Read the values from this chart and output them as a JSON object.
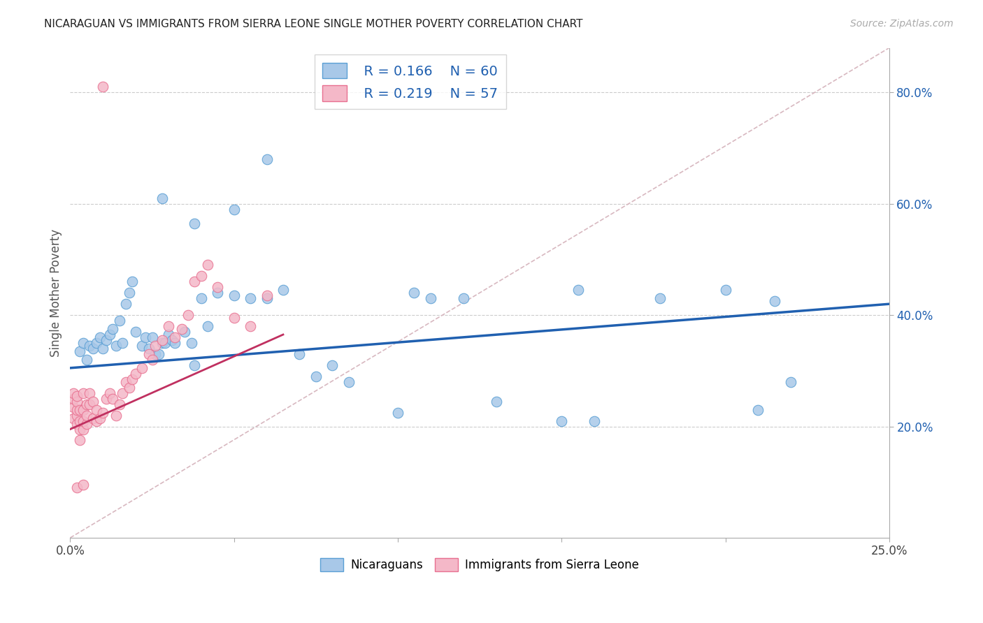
{
  "title": "NICARAGUAN VS IMMIGRANTS FROM SIERRA LEONE SINGLE MOTHER POVERTY CORRELATION CHART",
  "source": "Source: ZipAtlas.com",
  "ylabel": "Single Mother Poverty",
  "ytick_labels": [
    "20.0%",
    "40.0%",
    "60.0%",
    "80.0%"
  ],
  "ytick_positions": [
    0.2,
    0.4,
    0.6,
    0.8
  ],
  "xlim": [
    0.0,
    0.25
  ],
  "ylim": [
    0.0,
    0.88
  ],
  "legend_r1": "R = 0.166",
  "legend_n1": "N = 60",
  "legend_r2": "R = 0.219",
  "legend_n2": "N = 57",
  "color_blue": "#a8c8e8",
  "color_pink": "#f4b8c8",
  "color_blue_edge": "#5a9fd4",
  "color_pink_edge": "#e87090",
  "color_blue_line": "#2060b0",
  "color_pink_line": "#c03060",
  "color_diag_line": "#d8b8c0",
  "background_color": "#ffffff",
  "blue_scatter": [
    [
      0.003,
      0.335
    ],
    [
      0.004,
      0.35
    ],
    [
      0.005,
      0.32
    ],
    [
      0.006,
      0.345
    ],
    [
      0.007,
      0.34
    ],
    [
      0.008,
      0.35
    ],
    [
      0.009,
      0.36
    ],
    [
      0.01,
      0.34
    ],
    [
      0.011,
      0.355
    ],
    [
      0.012,
      0.365
    ],
    [
      0.013,
      0.375
    ],
    [
      0.014,
      0.345
    ],
    [
      0.015,
      0.39
    ],
    [
      0.016,
      0.35
    ],
    [
      0.017,
      0.42
    ],
    [
      0.018,
      0.44
    ],
    [
      0.019,
      0.46
    ],
    [
      0.02,
      0.37
    ],
    [
      0.022,
      0.345
    ],
    [
      0.023,
      0.36
    ],
    [
      0.024,
      0.34
    ],
    [
      0.025,
      0.36
    ],
    [
      0.026,
      0.33
    ],
    [
      0.027,
      0.33
    ],
    [
      0.028,
      0.35
    ],
    [
      0.029,
      0.35
    ],
    [
      0.03,
      0.365
    ],
    [
      0.031,
      0.355
    ],
    [
      0.032,
      0.35
    ],
    [
      0.035,
      0.37
    ],
    [
      0.037,
      0.35
    ],
    [
      0.038,
      0.31
    ],
    [
      0.04,
      0.43
    ],
    [
      0.042,
      0.38
    ],
    [
      0.045,
      0.44
    ],
    [
      0.05,
      0.435
    ],
    [
      0.055,
      0.43
    ],
    [
      0.06,
      0.43
    ],
    [
      0.065,
      0.445
    ],
    [
      0.07,
      0.33
    ],
    [
      0.075,
      0.29
    ],
    [
      0.08,
      0.31
    ],
    [
      0.085,
      0.28
    ],
    [
      0.1,
      0.225
    ],
    [
      0.105,
      0.44
    ],
    [
      0.11,
      0.43
    ],
    [
      0.12,
      0.43
    ],
    [
      0.13,
      0.245
    ],
    [
      0.15,
      0.21
    ],
    [
      0.155,
      0.445
    ],
    [
      0.16,
      0.21
    ],
    [
      0.18,
      0.43
    ],
    [
      0.2,
      0.445
    ],
    [
      0.21,
      0.23
    ],
    [
      0.215,
      0.425
    ],
    [
      0.22,
      0.28
    ],
    [
      0.028,
      0.61
    ],
    [
      0.038,
      0.565
    ],
    [
      0.05,
      0.59
    ],
    [
      0.06,
      0.68
    ]
  ],
  "pink_scatter": [
    [
      0.001,
      0.215
    ],
    [
      0.001,
      0.235
    ],
    [
      0.001,
      0.25
    ],
    [
      0.001,
      0.26
    ],
    [
      0.002,
      0.205
    ],
    [
      0.002,
      0.22
    ],
    [
      0.002,
      0.23
    ],
    [
      0.002,
      0.245
    ],
    [
      0.002,
      0.255
    ],
    [
      0.003,
      0.175
    ],
    [
      0.003,
      0.195
    ],
    [
      0.003,
      0.21
    ],
    [
      0.003,
      0.23
    ],
    [
      0.004,
      0.195
    ],
    [
      0.004,
      0.21
    ],
    [
      0.004,
      0.23
    ],
    [
      0.004,
      0.26
    ],
    [
      0.005,
      0.205
    ],
    [
      0.005,
      0.22
    ],
    [
      0.005,
      0.24
    ],
    [
      0.006,
      0.24
    ],
    [
      0.006,
      0.26
    ],
    [
      0.007,
      0.215
    ],
    [
      0.007,
      0.245
    ],
    [
      0.008,
      0.21
    ],
    [
      0.008,
      0.23
    ],
    [
      0.009,
      0.215
    ],
    [
      0.01,
      0.225
    ],
    [
      0.011,
      0.25
    ],
    [
      0.012,
      0.26
    ],
    [
      0.013,
      0.25
    ],
    [
      0.014,
      0.22
    ],
    [
      0.015,
      0.24
    ],
    [
      0.016,
      0.26
    ],
    [
      0.017,
      0.28
    ],
    [
      0.018,
      0.27
    ],
    [
      0.019,
      0.285
    ],
    [
      0.02,
      0.295
    ],
    [
      0.022,
      0.305
    ],
    [
      0.024,
      0.33
    ],
    [
      0.025,
      0.32
    ],
    [
      0.026,
      0.345
    ],
    [
      0.028,
      0.355
    ],
    [
      0.03,
      0.38
    ],
    [
      0.032,
      0.36
    ],
    [
      0.034,
      0.375
    ],
    [
      0.036,
      0.4
    ],
    [
      0.038,
      0.46
    ],
    [
      0.04,
      0.47
    ],
    [
      0.042,
      0.49
    ],
    [
      0.045,
      0.45
    ],
    [
      0.05,
      0.395
    ],
    [
      0.055,
      0.38
    ],
    [
      0.06,
      0.435
    ],
    [
      0.01,
      0.81
    ],
    [
      0.002,
      0.09
    ],
    [
      0.004,
      0.095
    ]
  ],
  "legend_labels": [
    "Nicaraguans",
    "Immigrants from Sierra Leone"
  ],
  "blue_line_x": [
    0.0,
    0.25
  ],
  "blue_line_y": [
    0.305,
    0.42
  ],
  "pink_line_x": [
    0.0,
    0.065
  ],
  "pink_line_y": [
    0.195,
    0.365
  ]
}
